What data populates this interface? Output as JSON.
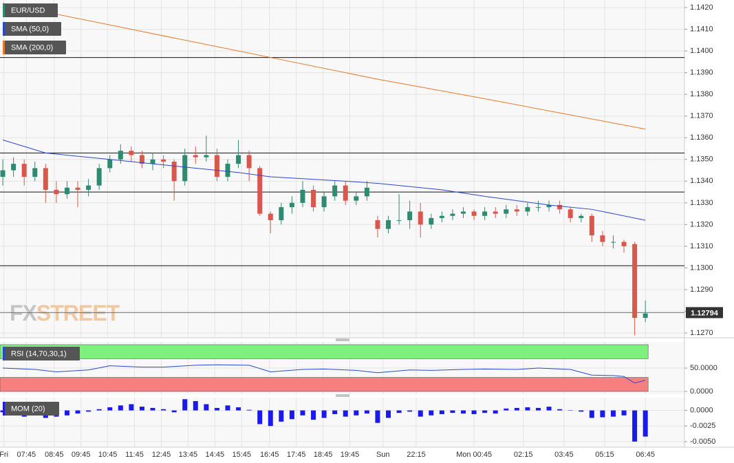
{
  "chart_data": {
    "type": "candlestick",
    "symbol": "EUR/USD",
    "watermark": [
      "FX",
      "STREET"
    ],
    "up_color": "#2f8a72",
    "down_color": "#d9574c",
    "candles": [
      [
        1.1342,
        1.135,
        1.1338,
        1.1345
      ],
      [
        1.1345,
        1.1351,
        1.1342,
        1.1348
      ],
      [
        1.1348,
        1.135,
        1.1338,
        1.1342
      ],
      [
        1.1342,
        1.1349,
        1.134,
        1.1346
      ],
      [
        1.1346,
        1.1348,
        1.133,
        1.1336
      ],
      [
        1.1336,
        1.134,
        1.133,
        1.1334
      ],
      [
        1.1334,
        1.134,
        1.1332,
        1.1337
      ],
      [
        1.1337,
        1.134,
        1.1328,
        1.1336
      ],
      [
        1.1336,
        1.1341,
        1.1333,
        1.1338
      ],
      [
        1.1338,
        1.1348,
        1.1336,
        1.1346
      ],
      [
        1.1346,
        1.1352,
        1.1344,
        1.135
      ],
      [
        1.135,
        1.1357,
        1.1348,
        1.1354
      ],
      [
        1.1354,
        1.1356,
        1.1349,
        1.1352
      ],
      [
        1.1352,
        1.1354,
        1.1346,
        1.1348
      ],
      [
        1.1348,
        1.1353,
        1.1345,
        1.135
      ],
      [
        1.135,
        1.1352,
        1.1346,
        1.1349
      ],
      [
        1.1349,
        1.135,
        1.1331,
        1.134
      ],
      [
        1.134,
        1.1355,
        1.1338,
        1.1352
      ],
      [
        1.1352,
        1.1356,
        1.1348,
        1.1351
      ],
      [
        1.1351,
        1.1361,
        1.1349,
        1.1352
      ],
      [
        1.1352,
        1.1355,
        1.134,
        1.1342
      ],
      [
        1.1342,
        1.135,
        1.134,
        1.1348
      ],
      [
        1.1348,
        1.1359,
        1.1346,
        1.1352
      ],
      [
        1.1352,
        1.1354,
        1.134,
        1.1346
      ],
      [
        1.1346,
        1.1347,
        1.1324,
        1.1325
      ],
      [
        1.1325,
        1.1326,
        1.1316,
        1.1322
      ],
      [
        1.1322,
        1.133,
        1.132,
        1.1328
      ],
      [
        1.1328,
        1.1333,
        1.1325,
        1.133
      ],
      [
        1.133,
        1.134,
        1.1328,
        1.1336
      ],
      [
        1.1336,
        1.1338,
        1.1326,
        1.1328
      ],
      [
        1.1328,
        1.1335,
        1.1326,
        1.1333
      ],
      [
        1.1333,
        1.134,
        1.1331,
        1.1338
      ],
      [
        1.1338,
        1.134,
        1.1329,
        1.1331
      ],
      [
        1.1331,
        1.1335,
        1.1329,
        1.1333
      ],
      [
        1.1333,
        1.134,
        1.1331,
        1.1337
      ],
      [
        1.1322,
        1.1324,
        1.1314,
        1.1318
      ],
      [
        1.1318,
        1.1324,
        1.1316,
        1.1322
      ],
      [
        1.1322,
        1.1334,
        1.132,
        1.1322
      ],
      [
        1.1322,
        1.1331,
        1.1318,
        1.1326
      ],
      [
        1.1326,
        1.133,
        1.1314,
        1.132
      ],
      [
        1.132,
        1.1325,
        1.1318,
        1.1323
      ],
      [
        1.1323,
        1.1326,
        1.1321,
        1.1324
      ],
      [
        1.1324,
        1.1327,
        1.1322,
        1.1325
      ],
      [
        1.1325,
        1.1328,
        1.1323,
        1.1326
      ],
      [
        1.1326,
        1.1327,
        1.1322,
        1.1324
      ],
      [
        1.1324,
        1.1328,
        1.1322,
        1.1326
      ],
      [
        1.1326,
        1.1328,
        1.1323,
        1.1325
      ],
      [
        1.1325,
        1.1329,
        1.1323,
        1.1327
      ],
      [
        1.1327,
        1.1329,
        1.1324,
        1.1326
      ],
      [
        1.1326,
        1.133,
        1.1324,
        1.1328
      ],
      [
        1.1328,
        1.1331,
        1.1326,
        1.1328
      ],
      [
        1.1328,
        1.1331,
        1.1326,
        1.1329
      ],
      [
        1.1329,
        1.1331,
        1.1325,
        1.1327
      ],
      [
        1.1327,
        1.1328,
        1.1321,
        1.1323
      ],
      [
        1.1323,
        1.1325,
        1.1321,
        1.1324
      ],
      [
        1.1324,
        1.1325,
        1.1312,
        1.1315
      ],
      [
        1.1315,
        1.1317,
        1.131,
        1.1312
      ],
      [
        1.1312,
        1.1315,
        1.1309,
        1.1312
      ],
      [
        1.1312,
        1.1313,
        1.1307,
        1.131
      ],
      [
        1.1311,
        1.1312,
        1.1269,
        1.1277
      ],
      [
        1.1277,
        1.1285,
        1.1275,
        1.1279
      ]
    ],
    "xlim": [
      -0.26,
      63.65
    ],
    "xticks": [
      {
        "value": 0.1,
        "label": "Fri"
      },
      {
        "value": 2.2,
        "label": "07:45"
      },
      {
        "value": 4.8,
        "label": "08:45"
      },
      {
        "value": 7.3,
        "label": "09:45"
      },
      {
        "value": 9.8,
        "label": "10:45"
      },
      {
        "value": 12.3,
        "label": "11:45"
      },
      {
        "value": 14.8,
        "label": "12:45"
      },
      {
        "value": 17.3,
        "label": "13:45"
      },
      {
        "value": 19.8,
        "label": "14:45"
      },
      {
        "value": 22.3,
        "label": "15:45"
      },
      {
        "value": 24.9,
        "label": "16:45"
      },
      {
        "value": 27.4,
        "label": "17:45"
      },
      {
        "value": 29.9,
        "label": "18:45"
      },
      {
        "value": 32.4,
        "label": "19:45"
      },
      {
        "value": 35.5,
        "label": "Sun"
      },
      {
        "value": 38.6,
        "label": "22:15"
      },
      {
        "value": 44.0,
        "label": "Mon 00:45"
      },
      {
        "value": 48.6,
        "label": "02:15"
      },
      {
        "value": 52.4,
        "label": "03:45"
      },
      {
        "value": 56.2,
        "label": "05:15"
      },
      {
        "value": 60.0,
        "label": "06:45"
      }
    ],
    "ylim": [
      1.12678,
      1.14235
    ],
    "yticks": [
      {
        "value": 1.127,
        "label": "1.1270"
      },
      {
        "value": 1.128,
        "label": "1.1280"
      },
      {
        "value": 1.129,
        "label": "1.1290"
      },
      {
        "value": 1.13,
        "label": "1.1300"
      },
      {
        "value": 1.131,
        "label": "1.1310"
      },
      {
        "value": 1.132,
        "label": "1.1320"
      },
      {
        "value": 1.133,
        "label": "1.1330"
      },
      {
        "value": 1.134,
        "label": "1.1340"
      },
      {
        "value": 1.135,
        "label": "1.1350"
      },
      {
        "value": 1.136,
        "label": "1.1360"
      },
      {
        "value": 1.137,
        "label": "1.1370"
      },
      {
        "value": 1.138,
        "label": "1.1380"
      },
      {
        "value": 1.139,
        "label": "1.1390"
      },
      {
        "value": 1.14,
        "label": "1.1400"
      },
      {
        "value": 1.141,
        "label": "1.1410"
      },
      {
        "value": 1.142,
        "label": "1.1420"
      }
    ],
    "grid": true,
    "levels": [
      1.1397,
      1.1353,
      1.1335,
      1.1301
    ],
    "level_color": "#111111",
    "last_price": 1.12794,
    "overlays": [
      {
        "name": "SMA (50,0)",
        "color": "#2a45d0",
        "x": [
          0,
          4,
          10,
          16,
          22,
          25,
          32,
          35,
          41,
          45,
          51,
          55,
          60
        ],
        "values": [
          1.1359,
          1.1353,
          1.135,
          1.1347,
          1.1344,
          1.1342,
          1.134,
          1.1339,
          1.1336,
          1.1333,
          1.1329,
          1.1327,
          1.1322
        ]
      },
      {
        "name": "SMA (200,0)",
        "color": "#e8782a",
        "x": [
          0,
          25,
          35,
          45,
          60
        ],
        "values": [
          1.1422,
          1.1397,
          1.1387,
          1.1378,
          1.1364
        ]
      }
    ],
    "indicators": [
      {
        "name": "RSI (14,70,30,1)",
        "type": "line",
        "color": "#2a45d0",
        "x": [
          0,
          3,
          5,
          8,
          10,
          13,
          15,
          18,
          20,
          23,
          25,
          28,
          30,
          33,
          35,
          38,
          40,
          43,
          45,
          48,
          50,
          53,
          55,
          57,
          58,
          59,
          60
        ],
        "values": [
          50,
          47,
          42,
          46,
          55,
          52,
          52,
          56,
          57,
          56,
          42,
          47,
          48,
          45,
          40,
          46,
          45,
          47,
          48,
          47,
          50,
          47,
          35,
          34,
          32,
          18,
          24
        ],
        "ylim": [
          -5.9,
          105.9
        ],
        "yticks": [
          {
            "value": 50,
            "label": "50.0000"
          },
          {
            "value": 0,
            "label": "0.0000"
          }
        ],
        "overbought": [
          70,
          100
        ],
        "overbought_color": "#7ef07e",
        "oversold": [
          0,
          30
        ],
        "oversold_color": "#f77f7f"
      },
      {
        "name": "MOM (20)",
        "type": "bar",
        "color": "#1a1aee",
        "values": [
          -0.0003,
          -0.0008,
          -0.001,
          -0.0006,
          -0.0012,
          -0.001,
          -0.0008,
          -0.0005,
          -0.0002,
          0.0002,
          0.0005,
          0.0008,
          0.001,
          0.0006,
          0.0004,
          0.0002,
          -0.0003,
          0.0018,
          0.0015,
          0.001,
          0.0004,
          0.0008,
          0.0005,
          0.0001,
          -0.0022,
          -0.0025,
          -0.0018,
          -0.0014,
          -0.0008,
          -0.0015,
          -0.0012,
          -0.0006,
          -0.001,
          -0.0008,
          -0.0005,
          -0.002,
          -0.0012,
          -0.0004,
          -0.0002,
          -0.001,
          -0.0008,
          -0.0006,
          -0.0004,
          -0.0005,
          -0.0006,
          -0.0004,
          -0.0005,
          0.0003,
          0.0004,
          0.0005,
          0.0004,
          0.0006,
          0.0002,
          0,
          -0.0002,
          -0.0012,
          -0.0011,
          -0.001,
          -0.0008,
          -0.005,
          -0.0042
        ],
        "ylim": [
          -0.0059,
          0.00205
        ],
        "yticks": [
          {
            "value": 0,
            "label": "0.0000"
          },
          {
            "value": -0.0025,
            "label": "-0.0025"
          },
          {
            "value": -0.005,
            "label": "-0.0050"
          }
        ]
      }
    ]
  }
}
